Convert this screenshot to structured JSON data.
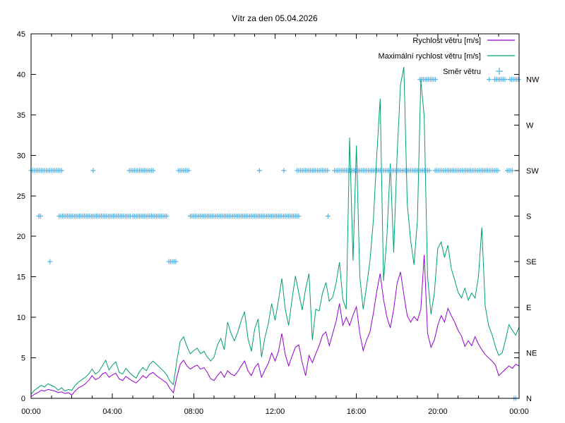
{
  "title": "Vítr za den 05.04.2026",
  "colors": {
    "speed": "#9400d3",
    "max_speed": "#009e73",
    "direction": "#56b4e9",
    "axis": "#000000",
    "background": "#ffffff"
  },
  "legend": {
    "items": [
      {
        "label": "Rychlost větru [m/s]",
        "series": "speed",
        "sample": "line"
      },
      {
        "label": "Maximální rychlost větru [m/s]",
        "series": "max_speed",
        "sample": "line"
      },
      {
        "label": "Směr větru",
        "series": "direction",
        "sample": "point"
      }
    ]
  },
  "axes": {
    "x": {
      "major_tick_labels": [
        "00:00",
        "04:00",
        "08:00",
        "12:00",
        "16:00",
        "20:00",
        "00:00"
      ],
      "major_step_hours": 4,
      "minor_step_hours": 1,
      "range_hours": [
        0,
        24
      ]
    },
    "y_left": {
      "min": 0,
      "max": 45,
      "step": 5,
      "tick_labels": [
        "0",
        "5",
        "10",
        "15",
        "20",
        "25",
        "30",
        "35",
        "40",
        "45"
      ]
    },
    "y_right": {
      "labels": [
        "N",
        "NE",
        "E",
        "SE",
        "S",
        "SW",
        "W",
        "NW"
      ],
      "values": [
        0,
        5.625,
        11.25,
        16.875,
        22.5,
        28.125,
        33.75,
        39.375
      ]
    }
  },
  "chart_data": {
    "type": "line+scatter",
    "title": "Vítr za den 05.04.2026",
    "xlabel": "",
    "ylabel_left": "",
    "y_left_range": [
      0,
      45
    ],
    "x_range_hours": [
      0,
      24
    ],
    "grid": false,
    "legend_position": "top-right-inside",
    "sample_step_minutes": 10,
    "x_start_hour": 0,
    "series": [
      {
        "name": "Rychlost větru [m/s]",
        "color_key": "speed",
        "values": [
          0.2,
          0.5,
          0.7,
          1.0,
          0.9,
          1.1,
          1.0,
          0.9,
          0.7,
          0.8,
          0.6,
          0.7,
          0.4,
          0.9,
          1.3,
          1.5,
          1.8,
          2.2,
          2.8,
          2.3,
          2.5,
          3.0,
          3.2,
          2.6,
          2.9,
          3.1,
          2.4,
          2.2,
          2.7,
          2.4,
          2.1,
          1.9,
          2.3,
          2.8,
          2.5,
          3.0,
          3.2,
          2.8,
          2.5,
          2.2,
          1.9,
          1.2,
          0.7,
          2.6,
          4.2,
          4.7,
          4.0,
          3.6,
          3.9,
          4.1,
          3.6,
          3.8,
          3.2,
          2.4,
          2.2,
          2.8,
          3.3,
          2.6,
          3.4,
          3.0,
          2.8,
          3.3,
          4.0,
          4.6,
          3.4,
          2.8,
          3.8,
          4.3,
          2.6,
          3.5,
          4.3,
          5.6,
          4.6,
          5.8,
          8.0,
          5.4,
          4.0,
          5.2,
          6.3,
          6.6,
          4.4,
          2.8,
          5.3,
          4.4,
          5.5,
          6.5,
          7.8,
          8.2,
          6.5,
          8.0,
          9.5,
          11.7,
          9.0,
          10.0,
          9.0,
          10.3,
          11.3,
          8.0,
          5.9,
          7.2,
          8.2,
          10.5,
          13.2,
          15.4,
          12.2,
          10.0,
          8.7,
          11.0,
          14.2,
          15.6,
          12.8,
          10.2,
          9.4,
          10.1,
          9.6,
          11.0,
          17.7,
          8.0,
          6.3,
          7.2,
          9.0,
          10.2,
          9.4,
          11.1,
          10.2,
          9.4,
          8.4,
          7.7,
          6.4,
          7.1,
          6.5,
          7.6,
          6.7,
          6.0,
          5.4,
          5.0,
          4.6,
          4.1,
          2.8,
          3.2,
          3.6,
          4.0,
          3.7,
          4.2,
          4.0
        ]
      },
      {
        "name": "Maximální rychlost větru [m/s]",
        "color_key": "max_speed",
        "values": [
          0.5,
          1.0,
          1.3,
          1.6,
          1.4,
          1.8,
          1.6,
          1.4,
          1.0,
          1.3,
          0.9,
          1.1,
          1.0,
          1.6,
          2.0,
          2.3,
          2.6,
          3.0,
          3.6,
          3.0,
          3.3,
          4.0,
          4.7,
          3.5,
          4.1,
          4.5,
          3.2,
          3.0,
          3.7,
          3.2,
          2.8,
          2.5,
          3.3,
          3.8,
          3.4,
          4.2,
          4.6,
          4.2,
          3.8,
          3.4,
          2.9,
          2.1,
          1.7,
          4.6,
          7.0,
          7.6,
          6.4,
          5.5,
          5.9,
          6.2,
          5.5,
          5.8,
          5.1,
          4.6,
          5.1,
          6.6,
          7.4,
          6.0,
          9.4,
          8.0,
          7.1,
          8.2,
          9.6,
          10.7,
          7.4,
          5.8,
          8.6,
          9.8,
          5.1,
          7.5,
          9.2,
          11.7,
          9.6,
          12.1,
          14.8,
          11.0,
          9.0,
          12.2,
          15.1,
          13.0,
          10.9,
          13.5,
          15.4,
          7.2,
          11.0,
          10.8,
          13.0,
          14.3,
          12.0,
          12.5,
          14.2,
          16.8,
          12.2,
          11.0,
          32.2,
          17.0,
          31.2,
          15.0,
          11.0,
          13.8,
          17.0,
          22.0,
          30.0,
          37.0,
          14.5,
          20.0,
          29.0,
          18.0,
          30.0,
          38.7,
          40.9,
          24.0,
          19.5,
          16.5,
          22.0,
          39.3,
          34.8,
          15.0,
          10.4,
          13.0,
          18.5,
          19.3,
          17.4,
          18.9,
          16.0,
          14.6,
          13.1,
          12.4,
          13.6,
          12.1,
          13.0,
          12.4,
          15.0,
          21.1,
          11.4,
          9.0,
          7.9,
          6.4,
          5.3,
          5.6,
          7.2,
          9.1,
          8.4,
          7.8,
          8.8
        ]
      }
    ],
    "direction_series": {
      "name": "Směr větru",
      "color_key": "direction",
      "marker": "+",
      "marker_step_minutes": 5,
      "levels": {
        "N": 0,
        "NE": 5.625,
        "E": 11.25,
        "SE": 16.875,
        "S": 22.5,
        "SW": 28.125,
        "W": 33.75,
        "NW": 39.375
      },
      "segments": [
        {
          "dir": "SW",
          "from_h": 0.0,
          "to_h": 1.58
        },
        {
          "dir": "S",
          "from_h": 0.38,
          "to_h": 0.52
        },
        {
          "dir": "SE",
          "from_h": 0.93,
          "to_h": 0.93
        },
        {
          "dir": "S",
          "from_h": 1.38,
          "to_h": 4.9
        },
        {
          "dir": "SW",
          "from_h": 3.05,
          "to_h": 3.05
        },
        {
          "dir": "SW",
          "from_h": 4.83,
          "to_h": 6.0
        },
        {
          "dir": "S",
          "from_h": 5.0,
          "to_h": 6.7
        },
        {
          "dir": "SE",
          "from_h": 6.78,
          "to_h": 7.17
        },
        {
          "dir": "SW",
          "from_h": 7.25,
          "to_h": 7.75
        },
        {
          "dir": "S",
          "from_h": 7.83,
          "to_h": 13.17
        },
        {
          "dir": "SW",
          "from_h": 11.23,
          "to_h": 11.23
        },
        {
          "dir": "SW",
          "from_h": 12.43,
          "to_h": 12.43
        },
        {
          "dir": "SW",
          "from_h": 13.08,
          "to_h": 14.58
        },
        {
          "dir": "S",
          "from_h": 14.6,
          "to_h": 14.6
        },
        {
          "dir": "SW",
          "from_h": 14.92,
          "to_h": 19.63
        },
        {
          "dir": "NW",
          "from_h": 19.13,
          "to_h": 19.92
        },
        {
          "dir": "SW",
          "from_h": 19.87,
          "to_h": 23.0
        },
        {
          "dir": "NW",
          "from_h": 22.53,
          "to_h": 22.53
        },
        {
          "dir": "NW",
          "from_h": 22.8,
          "to_h": 23.3
        },
        {
          "dir": "SW",
          "from_h": 23.42,
          "to_h": 23.67
        },
        {
          "dir": "N",
          "from_h": 23.75,
          "to_h": 23.85
        },
        {
          "dir": "NW",
          "from_h": 23.55,
          "to_h": 24.0
        }
      ]
    }
  }
}
